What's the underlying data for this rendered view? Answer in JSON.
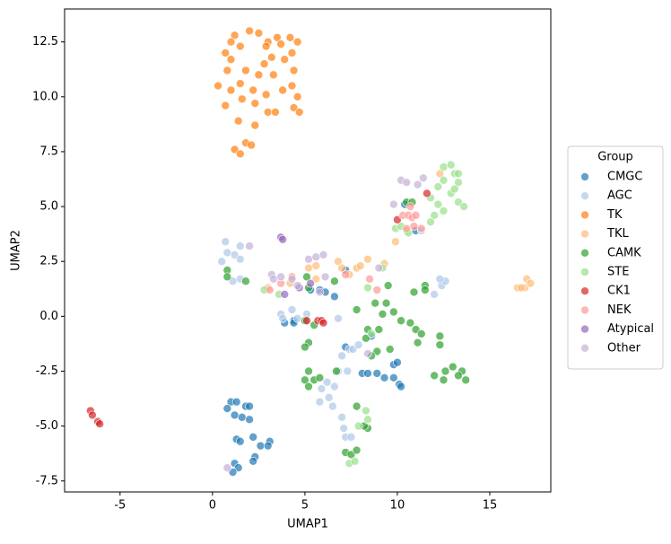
{
  "chart_data": {
    "type": "scatter",
    "xlabel": "UMAP1",
    "ylabel": "UMAP2",
    "xlim": [
      -8,
      18.3
    ],
    "ylim": [
      -8,
      14
    ],
    "xticks": [
      -5,
      0,
      5,
      10,
      15
    ],
    "yticks": [
      -7.5,
      -5.0,
      -2.5,
      0.0,
      2.5,
      5.0,
      7.5,
      10.0,
      12.5
    ],
    "legend_title": "Group",
    "legend": "right",
    "grid": false,
    "series": [
      {
        "name": "CMGC",
        "color": "#1f77b4",
        "x": [
          1,
          1.3,
          1.8,
          2,
          0.8,
          1.2,
          1.6,
          2,
          1.3,
          1.5,
          2.2,
          2.6,
          3.1,
          3,
          2.3,
          2.2,
          1.2,
          1.4,
          1.1,
          3.9,
          4.4,
          4.4,
          5.3,
          5.8,
          6.1,
          6.6,
          7.2,
          7.2,
          8.1,
          8.4,
          8.9,
          9.3,
          9.8,
          10,
          10.1,
          10.2,
          9.8,
          8.6,
          11,
          10.4
        ],
        "y": [
          -3.9,
          -3.9,
          -4.1,
          -4.1,
          -4.2,
          -4.5,
          -4.6,
          -4.7,
          -5.6,
          -5.7,
          -5.5,
          -5.9,
          -5.7,
          -5.9,
          -6.4,
          -6.6,
          -6.7,
          -6.9,
          -7.1,
          -0.3,
          -0.2,
          -0.3,
          1.2,
          1.2,
          1.1,
          0.9,
          2.1,
          -1.4,
          -2.6,
          -2.6,
          -2.6,
          -2.8,
          -2.2,
          -2.1,
          -3.1,
          -3.2,
          -2.8,
          -0.9,
          3.9,
          5.1
        ]
      },
      {
        "name": "AGC",
        "color": "#aec7e8",
        "x": [
          0.7,
          0.5,
          0.8,
          1.2,
          1.5,
          1.5,
          1.1,
          1.5,
          3.7,
          3.8,
          4.3,
          4.6,
          5.1,
          6.8,
          7,
          7.4,
          7.6,
          7.9,
          6.8,
          7.3,
          6.2,
          5.9,
          6.3,
          5.8,
          6.6,
          7,
          7.1,
          7.2,
          7.5,
          6.5,
          12,
          12.4,
          12.6,
          12.3,
          11.3
        ],
        "y": [
          3.4,
          2.5,
          2.9,
          2.8,
          2.6,
          3.2,
          1.6,
          1.7,
          0.1,
          -0.1,
          0.3,
          -0.1,
          0.1,
          -0.1,
          -1.8,
          -1.5,
          -1.5,
          -1.3,
          -2.5,
          -2.5,
          -3,
          -3.3,
          -3.7,
          -3.9,
          -3.2,
          -4.6,
          -5.1,
          -5.5,
          -5.5,
          -4.1,
          1,
          1.4,
          1.6,
          1.7,
          3.9
        ]
      },
      {
        "name": "TK",
        "color": "#ff7f0e",
        "x": [
          2,
          2.5,
          3,
          3.5,
          1.2,
          1,
          1.5,
          0.7,
          2.9,
          3.7,
          4.2,
          4.6,
          4.3,
          1,
          2.8,
          3.2,
          3.9,
          0.8,
          1.8,
          2.5,
          3.3,
          4.4,
          0.3,
          1,
          1.5,
          2.2,
          2.9,
          3.8,
          4.3,
          4.6,
          0.7,
          1.6,
          2.3,
          3,
          3.4,
          4.4,
          4.7,
          1.4,
          2.3,
          1.8,
          1.2,
          1.5,
          2.1
        ],
        "y": [
          13,
          12.9,
          12.5,
          12.7,
          12.8,
          12.5,
          12.3,
          12,
          12.3,
          12.4,
          12.7,
          12.5,
          12,
          11.7,
          11.5,
          11.8,
          11.7,
          11.2,
          11.2,
          11,
          11,
          11.2,
          10.5,
          10.3,
          10.6,
          10.3,
          10.1,
          10.3,
          10.5,
          10,
          9.6,
          9.9,
          9.7,
          9.3,
          9.3,
          9.5,
          9.3,
          8.9,
          8.7,
          7.9,
          7.6,
          7.4,
          7.8
        ]
      },
      {
        "name": "TKL",
        "color": "#ffbb78",
        "x": [
          16.5,
          16.9,
          17,
          17.2,
          16.7,
          9.9,
          12.3,
          3,
          4.2,
          5.2,
          5.6,
          6.8,
          7,
          7.8,
          8,
          8.4,
          9.3,
          7.4,
          5.6
        ],
        "y": [
          1.3,
          1.3,
          1.7,
          1.5,
          1.3,
          3.4,
          6.5,
          1.3,
          1.5,
          2.2,
          2.3,
          2.5,
          2.2,
          2.2,
          2.3,
          2.6,
          2.4,
          1.9,
          1.7
        ]
      },
      {
        "name": "CAMK",
        "color": "#2ca02c",
        "x": [
          0.8,
          0.8,
          1.8,
          5.1,
          5.2,
          5,
          5.2,
          5,
          5.2,
          5.5,
          5,
          5.2,
          5.8,
          5.5,
          6.6,
          7.8,
          8.8,
          9.4,
          9.2,
          9.8,
          10.2,
          9,
          8.4,
          8.3,
          8.9,
          8.6,
          9.6,
          10.7,
          11,
          11.1,
          11.3,
          12.3,
          12.3,
          12,
          12.6,
          12.5,
          13,
          13.5,
          13.7,
          13.3,
          8.4,
          8.2,
          7.8,
          7.2,
          7.5,
          7.8,
          10.5,
          10.8,
          11.5,
          11.5,
          10.9,
          9.5,
          6.7
        ],
        "y": [
          2.1,
          1.8,
          1.6,
          1.8,
          1.3,
          -0.2,
          -1.2,
          -1.4,
          -2.5,
          -2.9,
          -2.9,
          -3.2,
          -2.8,
          -0.4,
          1.6,
          0.3,
          0.6,
          0.6,
          0.1,
          0.2,
          -0.2,
          -0.6,
          -0.6,
          -1,
          -1.6,
          -1.8,
          -1.5,
          -0.3,
          -0.6,
          -1.2,
          -0.8,
          -0.9,
          -1.3,
          -2.7,
          -2.5,
          -2.9,
          -2.3,
          -2.5,
          -2.9,
          -2.7,
          -5.1,
          -5,
          -4.1,
          -6.2,
          -6.3,
          -6.1,
          5.2,
          5.2,
          1.4,
          1.2,
          1.1,
          1.4,
          -2.5
        ]
      },
      {
        "name": "STE",
        "color": "#98df8a",
        "x": [
          9.9,
          10.2,
          10.5,
          10.6,
          11.8,
          12,
          12.2,
          11.8,
          12.2,
          12.5,
          12.5,
          12.9,
          13.1,
          13.3,
          13.3,
          12.9,
          13.1,
          13.3,
          13.6,
          12.5,
          8.4,
          8.3,
          7.4,
          7.7,
          7.9,
          8.6,
          9.2,
          3.6,
          2.8,
          8.4
        ],
        "y": [
          4,
          4.1,
          3.9,
          3.8,
          4.3,
          4.6,
          5.1,
          5.4,
          5.9,
          6.2,
          6.8,
          6.9,
          6.5,
          6.5,
          6.1,
          5.6,
          5.8,
          5.2,
          5,
          4.8,
          -4.7,
          -4.3,
          -6.7,
          -6.6,
          -5,
          -0.8,
          2.2,
          1,
          1.2,
          1.3
        ]
      },
      {
        "name": "CK1",
        "color": "#d62728",
        "x": [
          -6.6,
          -6.5,
          -6.2,
          -6.1,
          5.1,
          5.7,
          5.9,
          10,
          11.6,
          6
        ],
        "y": [
          -4.3,
          -4.5,
          -4.8,
          -4.9,
          -0.2,
          -0.2,
          -0.2,
          4.4,
          5.6,
          -0.3
        ]
      },
      {
        "name": "NEK",
        "color": "#ff9896",
        "x": [
          10.3,
          10.6,
          10.8,
          11,
          10.5,
          10.9,
          11.3,
          10.7,
          3.1,
          3.7,
          4.3,
          7.2,
          8.5,
          8.9
        ],
        "y": [
          4.6,
          4.6,
          4.5,
          4.6,
          4,
          4.1,
          4,
          5,
          1.2,
          1.5,
          1.8,
          1.9,
          1.7,
          1.2
        ]
      },
      {
        "name": "Atypical",
        "color": "#9467bd",
        "x": [
          3.7,
          3.8,
          3.9,
          4.7,
          5.3
        ],
        "y": [
          3.6,
          3.5,
          1,
          1.3,
          1.5
        ]
      },
      {
        "name": "Other",
        "color": "#c5b0d5",
        "x": [
          10.2,
          10.5,
          11.1,
          11.4,
          9.8,
          2,
          3.2,
          3.3,
          3.7,
          4.3,
          4.6,
          5.2,
          5.6,
          6,
          6.1,
          9,
          8.4,
          0.8,
          5.8
        ],
        "y": [
          6.2,
          6.1,
          6,
          6.3,
          5.1,
          3.2,
          1.9,
          1.7,
          1.8,
          1.7,
          1.4,
          2.6,
          2.7,
          2.8,
          1.8,
          2.2,
          -1.7,
          -6.9,
          1.1
        ]
      }
    ]
  }
}
